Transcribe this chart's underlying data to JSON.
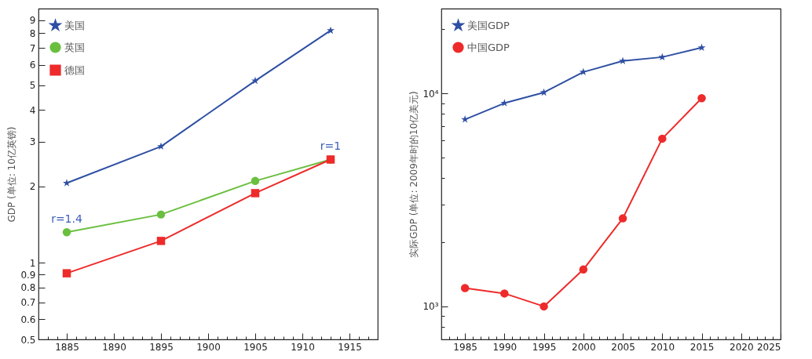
{
  "chart_data": [
    {
      "type": "line",
      "ylabel": "GDP (单位: 10亿英镑)",
      "log": "y",
      "legend": "top left",
      "xlim": [
        1882,
        1918
      ],
      "ylim": [
        0.5,
        10
      ],
      "xticks": [
        {
          "value": 1883,
          "label": null
        },
        {
          "value": 1884,
          "label": null
        },
        1885,
        {
          "value": 1886,
          "label": null
        },
        {
          "value": 1887,
          "label": null
        },
        {
          "value": 1888,
          "label": null
        },
        {
          "value": 1889,
          "label": null
        },
        1890,
        {
          "value": 1891,
          "label": null
        },
        {
          "value": 1892,
          "label": null
        },
        {
          "value": 1893,
          "label": null
        },
        {
          "value": 1894,
          "label": null
        },
        1895,
        {
          "value": 1896,
          "label": null
        },
        {
          "value": 1897,
          "label": null
        },
        {
          "value": 1898,
          "label": null
        },
        {
          "value": 1899,
          "label": null
        },
        1900,
        {
          "value": 1901,
          "label": null
        },
        {
          "value": 1902,
          "label": null
        },
        {
          "value": 1903,
          "label": null
        },
        {
          "value": 1904,
          "label": null
        },
        1905,
        {
          "value": 1906,
          "label": null
        },
        {
          "value": 1907,
          "label": null
        },
        {
          "value": 1908,
          "label": null
        },
        {
          "value": 1909,
          "label": null
        },
        1910,
        {
          "value": 1911,
          "label": null
        },
        {
          "value": 1912,
          "label": null
        },
        {
          "value": 1913,
          "label": null
        },
        {
          "value": 1914,
          "label": null
        },
        1915,
        {
          "value": 1916,
          "label": null
        },
        {
          "value": 1917,
          "label": null
        }
      ],
      "yticks": [
        0.5,
        0.6,
        0.7,
        0.8,
        0.9,
        1,
        2,
        3,
        4,
        5,
        6,
        7,
        8,
        9
      ],
      "series": [
        {
          "name": "美国",
          "color": "#2e4fa3",
          "marker": "star",
          "x": [
            1885,
            1895,
            1905,
            1913
          ],
          "values": [
            2.06,
            2.87,
            5.2,
            8.2
          ]
        },
        {
          "name": "英国",
          "color": "#6abf3f",
          "marker": "circle",
          "x": [
            1885,
            1895,
            1905,
            1913
          ],
          "values": [
            1.32,
            1.55,
            2.1,
            2.55
          ]
        },
        {
          "name": "德国",
          "color": "#ee2a2a",
          "marker": "square",
          "x": [
            1885,
            1895,
            1905,
            1913
          ],
          "values": [
            0.91,
            1.22,
            1.88,
            2.55
          ]
        }
      ],
      "annotations": [
        "r=1.4",
        "r=1"
      ]
    },
    {
      "type": "line",
      "ylabel": "实际GDP (单位: 2009年时的10亿美元)",
      "log": "y",
      "legend": "top left",
      "xlim": [
        1982,
        2025
      ],
      "ylim": [
        700,
        25000
      ],
      "xticks": [
        {
          "value": 1983,
          "label": null
        },
        {
          "value": 1984,
          "label": null
        },
        1985,
        {
          "value": 1986,
          "label": null
        },
        {
          "value": 1987,
          "label": null
        },
        {
          "value": 1988,
          "label": null
        },
        {
          "value": 1989,
          "label": null
        },
        1990,
        {
          "value": 1991,
          "label": null
        },
        {
          "value": 1992,
          "label": null
        },
        {
          "value": 1993,
          "label": null
        },
        {
          "value": 1994,
          "label": null
        },
        1995,
        {
          "value": 1996,
          "label": null
        },
        {
          "value": 1997,
          "label": null
        },
        {
          "value": 1998,
          "label": null
        },
        {
          "value": 1999,
          "label": null
        },
        2000,
        {
          "value": 2001,
          "label": null
        },
        {
          "value": 2002,
          "label": null
        },
        {
          "value": 2003,
          "label": null
        },
        {
          "value": 2004,
          "label": null
        },
        2005,
        {
          "value": 2006,
          "label": null
        },
        {
          "value": 2007,
          "label": null
        },
        {
          "value": 2008,
          "label": null
        },
        {
          "value": 2009,
          "label": null
        },
        2010,
        {
          "value": 2011,
          "label": null
        },
        {
          "value": 2012,
          "label": null
        },
        {
          "value": 2013,
          "label": null
        },
        {
          "value": 2014,
          "label": null
        },
        2015,
        {
          "value": 2016,
          "label": null
        },
        {
          "value": 2017,
          "label": null
        },
        {
          "value": 2018,
          "label": null
        },
        {
          "value": 2019,
          "label": null
        },
        2020,
        {
          "value": 2021,
          "label": null
        },
        {
          "value": 2022,
          "label": null
        },
        {
          "value": 2023,
          "label": null
        },
        {
          "value": 2024,
          "label": null
        },
        2025
      ],
      "yticks": [
        {
          "value": 700,
          "label": null
        },
        {
          "value": 800,
          "label": null
        },
        {
          "value": 900,
          "label": null
        },
        {
          "value": 1000,
          "label": "10³"
        },
        {
          "value": 2000,
          "label": null
        },
        {
          "value": 3000,
          "label": null
        },
        {
          "value": 4000,
          "label": null
        },
        {
          "value": 5000,
          "label": null
        },
        {
          "value": 6000,
          "label": null
        },
        {
          "value": 7000,
          "label": null
        },
        {
          "value": 8000,
          "label": null
        },
        {
          "value": 9000,
          "label": null
        },
        {
          "value": 10000,
          "label": "10⁴"
        },
        {
          "value": 20000,
          "label": null
        }
      ],
      "series": [
        {
          "name": "美国GDP",
          "color": "#2e4fa3",
          "marker": "star",
          "x": [
            1985,
            1990,
            1995,
            2000,
            2005,
            2010,
            2015
          ],
          "values": [
            7550,
            9000,
            10100,
            12600,
            14200,
            14800,
            16400
          ]
        },
        {
          "name": "中国GDP",
          "color": "#ee2a2a",
          "marker": "circle",
          "x": [
            1985,
            1990,
            1995,
            2000,
            2005,
            2010,
            2015
          ],
          "values": [
            1220,
            1150,
            1000,
            1490,
            2590,
            6130,
            9500
          ]
        }
      ]
    }
  ]
}
